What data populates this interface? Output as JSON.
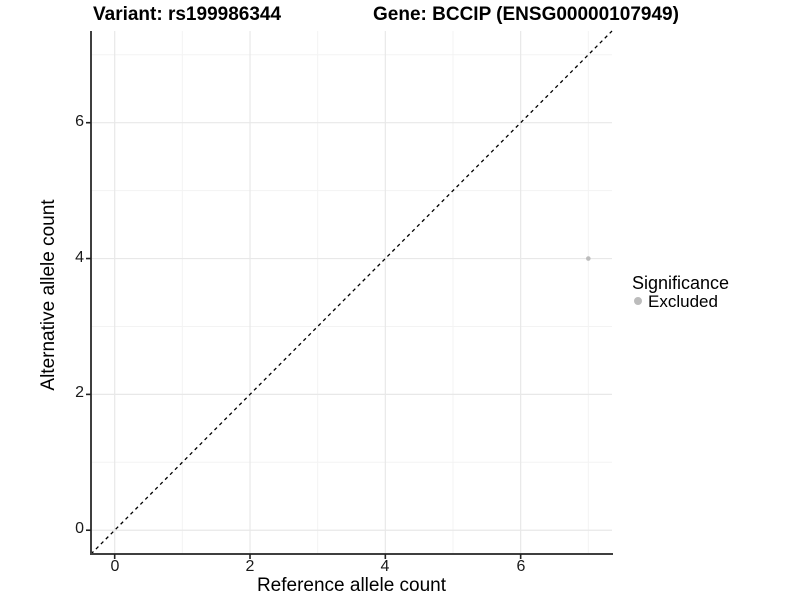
{
  "chart_data": {
    "type": "scatter",
    "titles": {
      "left": "Variant: rs199986344",
      "right": "Gene: BCCIP (ENSG00000107949)"
    },
    "xlabel": "Reference allele count",
    "ylabel": "Alternative allele count",
    "xlim": [
      -0.35,
      7.35
    ],
    "ylim": [
      -0.35,
      7.35
    ],
    "x_ticks": [
      0,
      2,
      4,
      6
    ],
    "y_ticks": [
      0,
      2,
      4,
      6
    ],
    "minor_gridlines_x": [
      1,
      3,
      5,
      7
    ],
    "minor_gridlines_y": [
      1,
      3,
      5,
      7
    ],
    "grid": "major and minor, light gray on white",
    "points": [
      {
        "x": 7,
        "y": 4,
        "significance": "Excluded",
        "color": "#bcbcbc"
      }
    ],
    "reference_line": {
      "kind": "identity y=x",
      "linetype": "dashed",
      "color": "#000000",
      "from": [
        -0.35,
        -0.35
      ],
      "to": [
        7.35,
        7.35
      ]
    },
    "legend": {
      "title": "Significance",
      "position": "right",
      "entries": [
        {
          "label": "Excluded",
          "color": "#bcbcbc",
          "shape": "circle"
        }
      ]
    },
    "colors": {
      "background": "#ffffff",
      "grid_major": "#e8e8e8",
      "grid_minor": "#f3f3f3",
      "axis_line": "#3f3f3f",
      "tick_mark": "#222222",
      "point": "#bcbcbc",
      "text": "#000000"
    }
  }
}
